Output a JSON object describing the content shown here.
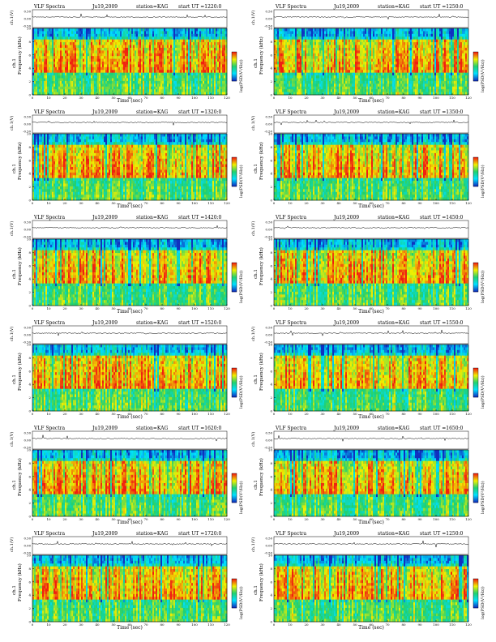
{
  "chart_data": [
    {
      "type": "heatmap",
      "title": "VLF Spectra",
      "date": "Ju19,2009",
      "station": "station=KAG",
      "start_ut": "start UT =1220:0",
      "seed": 11
    },
    {
      "type": "heatmap",
      "title": "VLF Spectra",
      "date": "Ju19,2009",
      "station": "station=KAG",
      "start_ut": "start UT =1250:0",
      "seed": 23
    },
    {
      "type": "heatmap",
      "title": "VLF Spectra",
      "date": "Ju19,2009",
      "station": "station=KAG",
      "start_ut": "start UT =1320:0",
      "seed": 37
    },
    {
      "type": "heatmap",
      "title": "VLF Spectra",
      "date": "Ju19,2009",
      "station": "station=KAG",
      "start_ut": "start UT =1350:0",
      "seed": 41
    },
    {
      "type": "heatmap",
      "title": "VLF Spectra",
      "date": "Ju19,2009",
      "station": "station=KAG",
      "start_ut": "start UT =1420:0",
      "seed": 53
    },
    {
      "type": "heatmap",
      "title": "VLF Spectra",
      "date": "Ju19,2009",
      "station": "station=KAG",
      "start_ut": "start UT =1450:0",
      "seed": 67
    },
    {
      "type": "heatmap",
      "title": "VLF Spectra",
      "date": "Ju19,2009",
      "station": "station=KAG",
      "start_ut": "start UT =1520:0",
      "seed": 71
    },
    {
      "type": "heatmap",
      "title": "VLF Spectra",
      "date": "Ju19,2009",
      "station": "station=KAG",
      "start_ut": "start UT =1550:0",
      "seed": 83
    },
    {
      "type": "heatmap",
      "title": "VLF Spectra",
      "date": "Ju19,2009",
      "station": "station=KAG",
      "start_ut": "start UT =1620:0",
      "seed": 97
    },
    {
      "type": "heatmap",
      "title": "VLF Spectra",
      "date": "Ju19,2009",
      "station": "station=KAG",
      "start_ut": "start UT =1650:0",
      "seed": 101
    },
    {
      "type": "heatmap",
      "title": "VLF Spectra",
      "date": "Ju19,2009",
      "station": "station=KAG",
      "start_ut": "start UT =1720:0",
      "seed": 113
    },
    {
      "type": "heatmap",
      "title": "VLF Spectra",
      "date": "Ju19,2009",
      "station": "station=KAG",
      "start_ut": "start UT =1250:0",
      "seed": 127
    }
  ],
  "axes": {
    "waveform_ylabel": "ch.1(V)",
    "waveform_ticks": [
      "0.50",
      "0.00",
      "-0.50"
    ],
    "waveform_ylim": [
      -0.5,
      0.5
    ],
    "freq_ylabel": "Frequency (kHz)",
    "freq_ylabel_prefix": "ch.1",
    "freq_ticks": [
      "0",
      "2",
      "4",
      "6",
      "8",
      "10"
    ],
    "freq_ylim": [
      0,
      10
    ],
    "xlabel": "Time (sec)",
    "x_ticks": [
      "0",
      "10",
      "20",
      "30",
      "40",
      "50",
      "60",
      "70",
      "80",
      "90",
      "100",
      "110",
      "120"
    ],
    "xlim": [
      0,
      120
    ],
    "colorbar_label": "log(PSD(V²/Hz))"
  },
  "colors": {
    "low": "#1030c0",
    "mid_low": "#00e0ff",
    "mid": "#20d070",
    "mid_high": "#f0f000",
    "high": "#f02010",
    "band_edge": "#00d8e8"
  }
}
